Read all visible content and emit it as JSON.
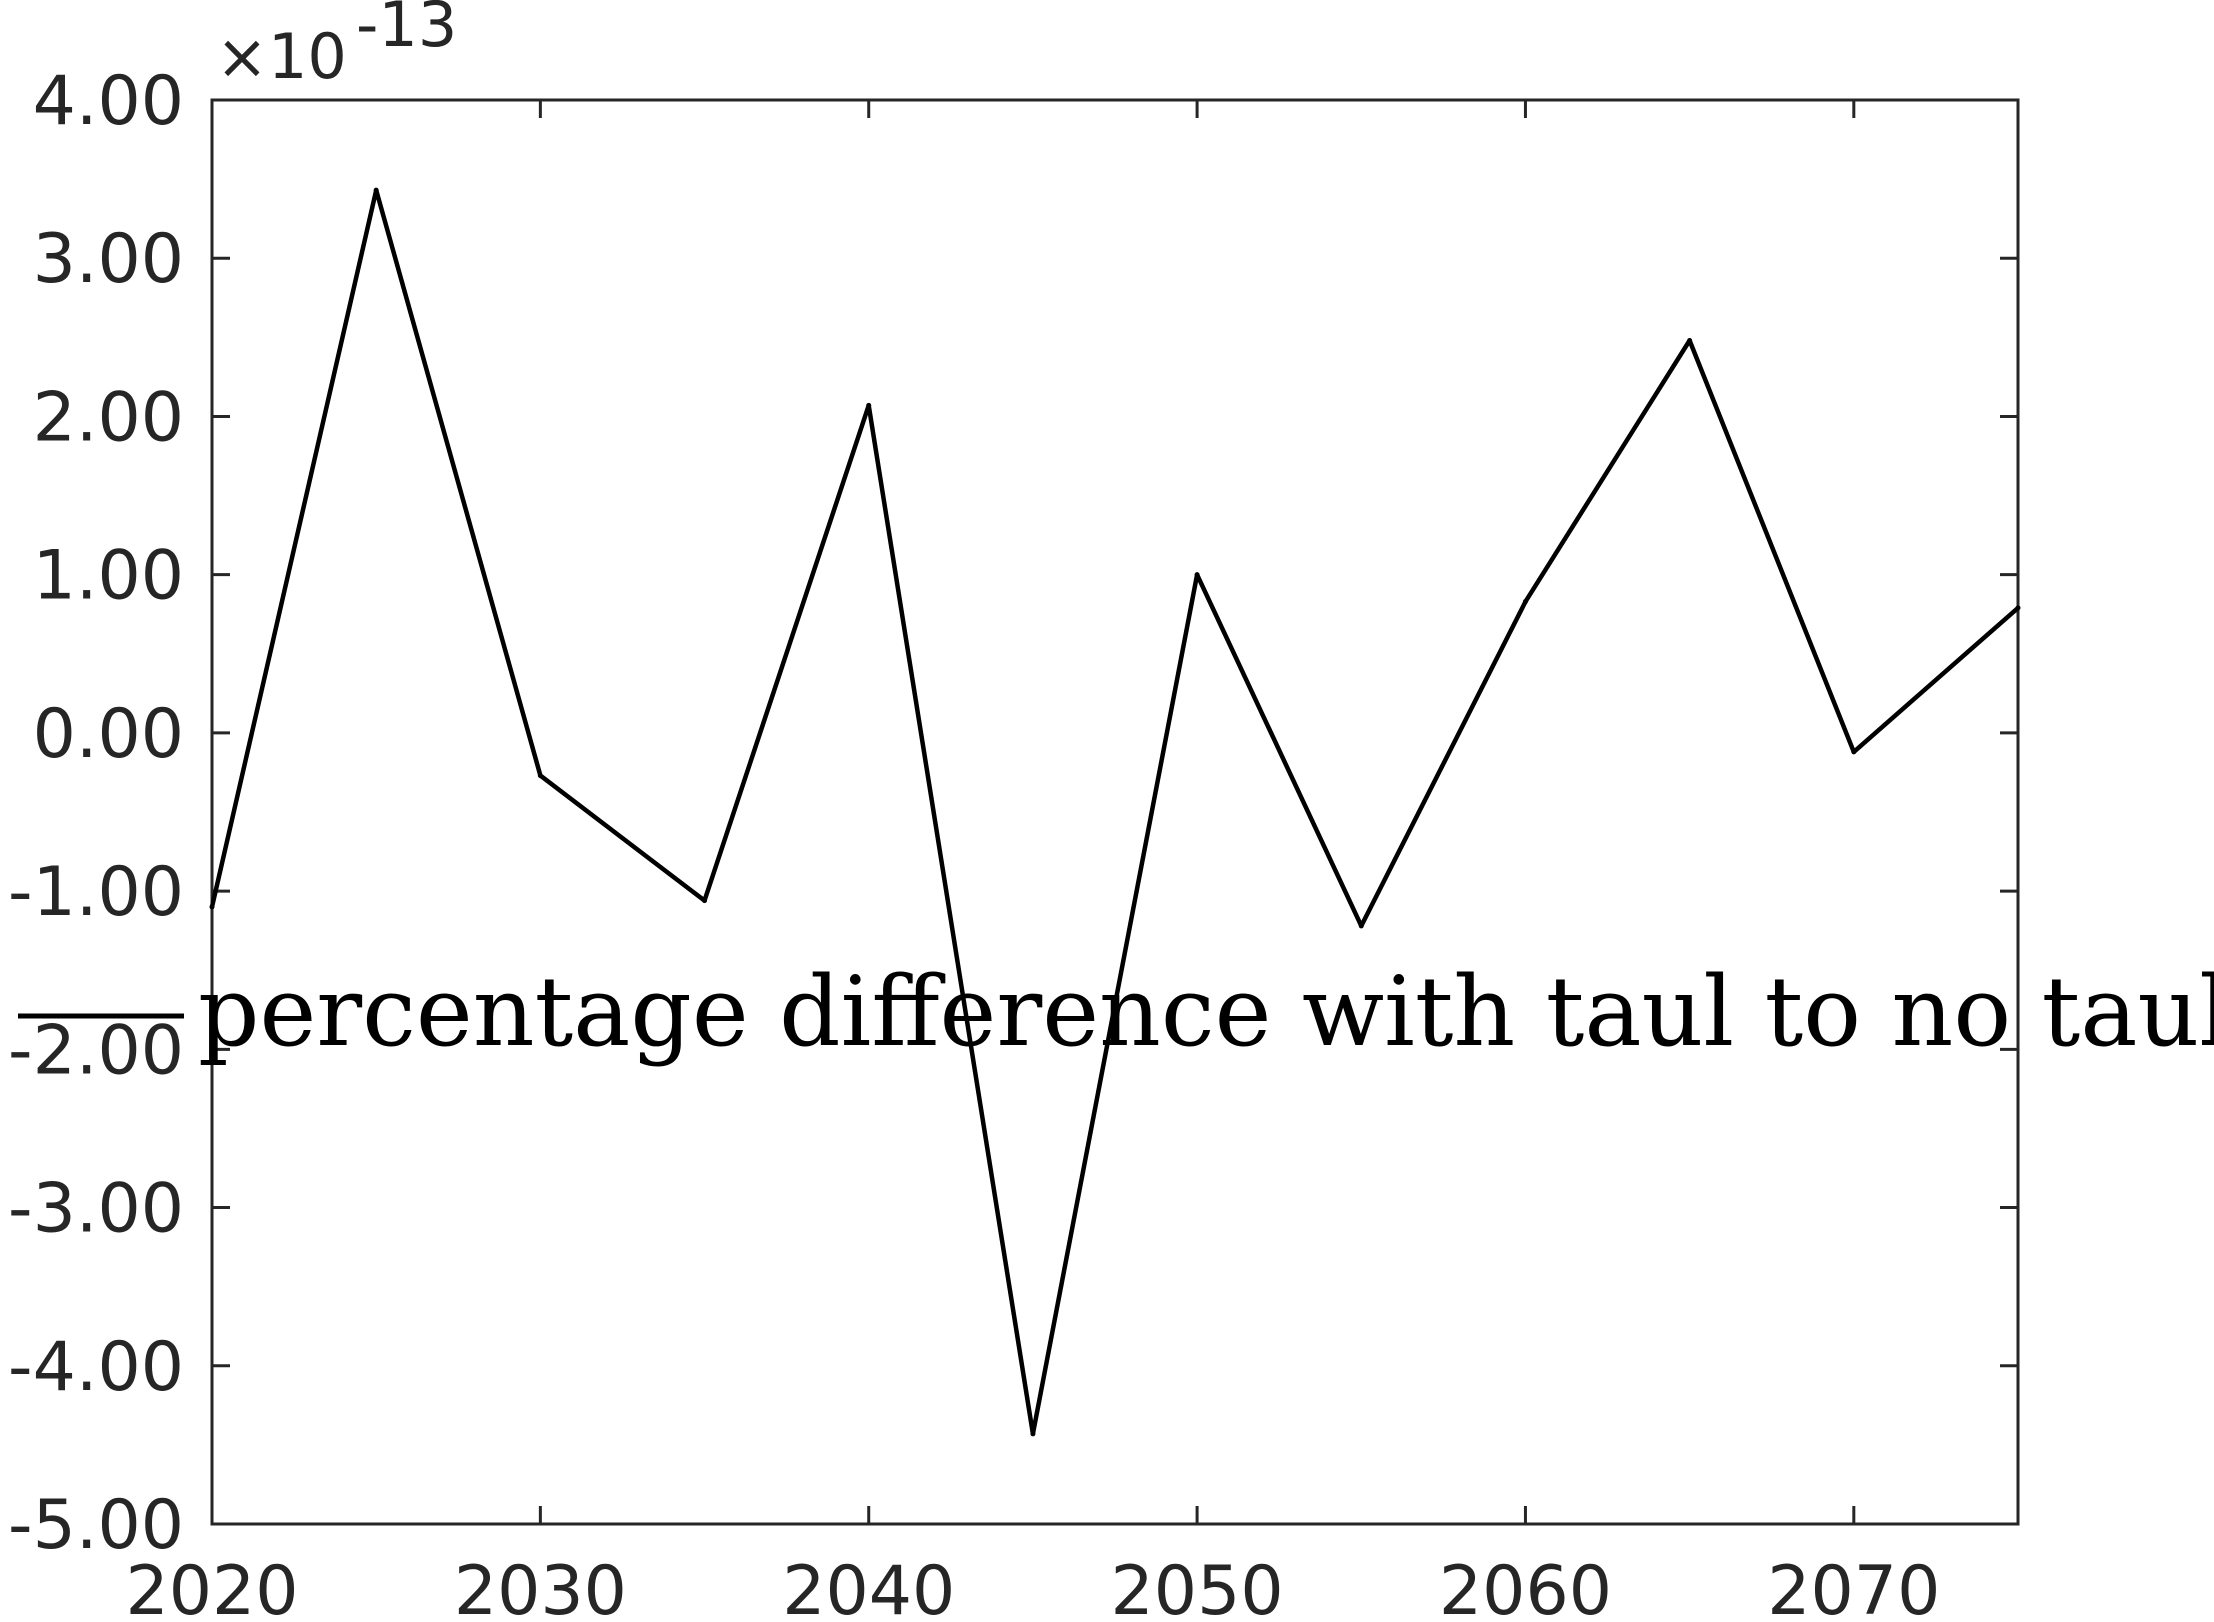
{
  "chart_data": {
    "type": "line",
    "title": "",
    "xlabel": "",
    "ylabel": "",
    "y_exponent": {
      "multiplier": "×10",
      "power": "-13"
    },
    "xlim": [
      2020,
      2075
    ],
    "ylim": [
      -5.0,
      4.0
    ],
    "x_ticks": [
      2020,
      2030,
      2040,
      2050,
      2060,
      2070
    ],
    "x_tick_labels": [
      "2020",
      "2030",
      "2040",
      "2050",
      "2060",
      "2070"
    ],
    "y_ticks": [
      4.0,
      3.0,
      2.0,
      1.0,
      0.0,
      -1.0,
      -2.0,
      -3.0,
      -4.0,
      -5.0
    ],
    "y_tick_labels": [
      "4.00",
      "3.00",
      "2.00",
      "1.00",
      "0.00",
      "-1.00",
      "-2.00",
      "-3.00",
      "-4.00",
      "-5.00"
    ],
    "grid": false,
    "legend_position": "center",
    "series": [
      {
        "name": "percentage difference with taul to no taul",
        "color": "#000000",
        "x": [
          2020,
          2025,
          2030,
          2035,
          2040,
          2045,
          2050,
          2055,
          2060,
          2065,
          2070,
          2075
        ],
        "y": [
          -1.1,
          3.43,
          -0.27,
          -1.06,
          2.07,
          -4.43,
          1.0,
          -1.22,
          0.83,
          2.48,
          -0.12,
          0.79
        ]
      }
    ]
  }
}
